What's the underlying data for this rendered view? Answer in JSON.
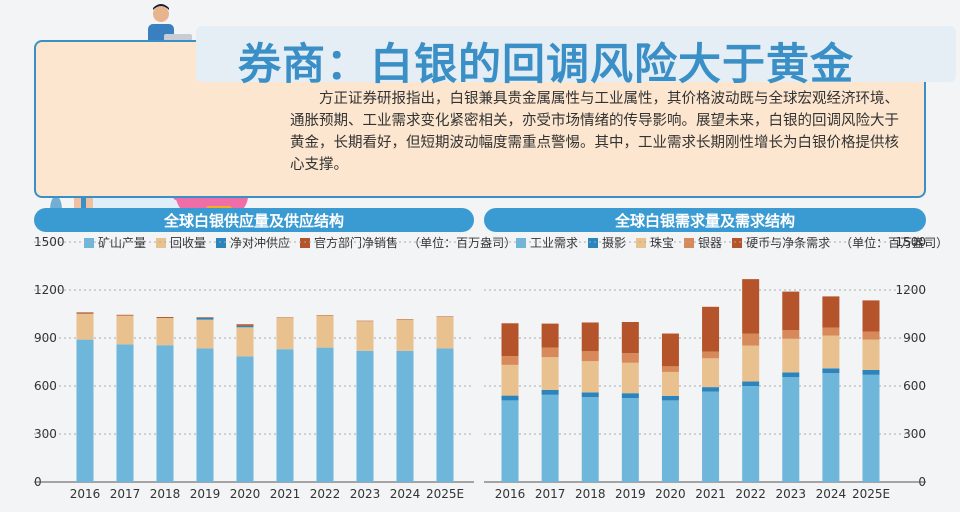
{
  "title": "券商：白银的回调风险大于黄金",
  "paragraph": "方正证券研报指出，白银兼具贵金属属性与工业属性，其价格波动既与全球宏观经济环境、通胀预期、工业需求变化紧密相关，亦受市场情绪的传导影响。展望未来，白银的回调风险大于黄金，长期看好，但短期波动幅度需重点警惕。其中，工业需求长期刚性增长为白银价格提供核心支撑。",
  "colors": {
    "accent": "#3a8fc6",
    "panel_fill": "#fce6cf",
    "bar_blue": "#6fb6db",
    "bar_tan": "#e8c18f",
    "bar_darkblue": "#2c84bd",
    "bar_rust": "#b5542a",
    "bar_rust_light": "#d8895a"
  },
  "chart_data": [
    {
      "type": "bar",
      "stacked": true,
      "title": "全球白银供应量及供应结构",
      "legend_position": "top",
      "unit_note": "（单位：百万盎司）",
      "categories": [
        "2016",
        "2017",
        "2018",
        "2019",
        "2020",
        "2021",
        "2022",
        "2023",
        "2024",
        "2025E"
      ],
      "ylim": [
        0,
        1500
      ],
      "yticks": [
        0,
        300,
        600,
        900,
        1200,
        1500
      ],
      "series": [
        {
          "name": "矿山产量",
          "color": "#6fb6db",
          "values": [
            890,
            860,
            855,
            835,
            785,
            830,
            840,
            820,
            820,
            835
          ]
        },
        {
          "name": "回收量",
          "color": "#e8c18f",
          "values": [
            162,
            180,
            170,
            180,
            182,
            198,
            200,
            185,
            195,
            197
          ]
        },
        {
          "name": "净对冲供应",
          "color": "#2c84bd",
          "values": [
            0,
            0,
            0,
            11,
            9,
            0,
            0,
            0,
            0,
            0
          ]
        },
        {
          "name": "官方部门净销售",
          "color": "#b5542a",
          "values": [
            8,
            5,
            6,
            4,
            10,
            2,
            3,
            3,
            3,
            3
          ]
        }
      ]
    },
    {
      "type": "bar",
      "stacked": true,
      "title": "全球白银需求量及需求结构",
      "legend_position": "top",
      "unit_note": "（单位：百万盎司）",
      "categories": [
        "2016",
        "2017",
        "2018",
        "2019",
        "2020",
        "2021",
        "2022",
        "2023",
        "2024",
        "2025E"
      ],
      "ylim": [
        0,
        1500
      ],
      "yticks": [
        0,
        300,
        600,
        900,
        1200,
        1500
      ],
      "series": [
        {
          "name": "工业需求",
          "color": "#6fb6db",
          "values": [
            510,
            545,
            530,
            525,
            510,
            565,
            600,
            655,
            680,
            670
          ]
        },
        {
          "name": "摄影",
          "color": "#2c84bd",
          "values": [
            30,
            30,
            30,
            30,
            28,
            28,
            28,
            30,
            30,
            30
          ]
        },
        {
          "name": "珠宝",
          "color": "#e8c18f",
          "values": [
            192,
            205,
            195,
            190,
            150,
            180,
            225,
            210,
            205,
            190
          ]
        },
        {
          "name": "银器",
          "color": "#d8895a",
          "values": [
            55,
            60,
            62,
            60,
            35,
            42,
            75,
            55,
            50,
            50
          ]
        },
        {
          "name": "硬币与净条需求",
          "color": "#b5542a",
          "values": [
            205,
            150,
            180,
            195,
            205,
            280,
            340,
            240,
            195,
            195
          ]
        }
      ]
    }
  ]
}
